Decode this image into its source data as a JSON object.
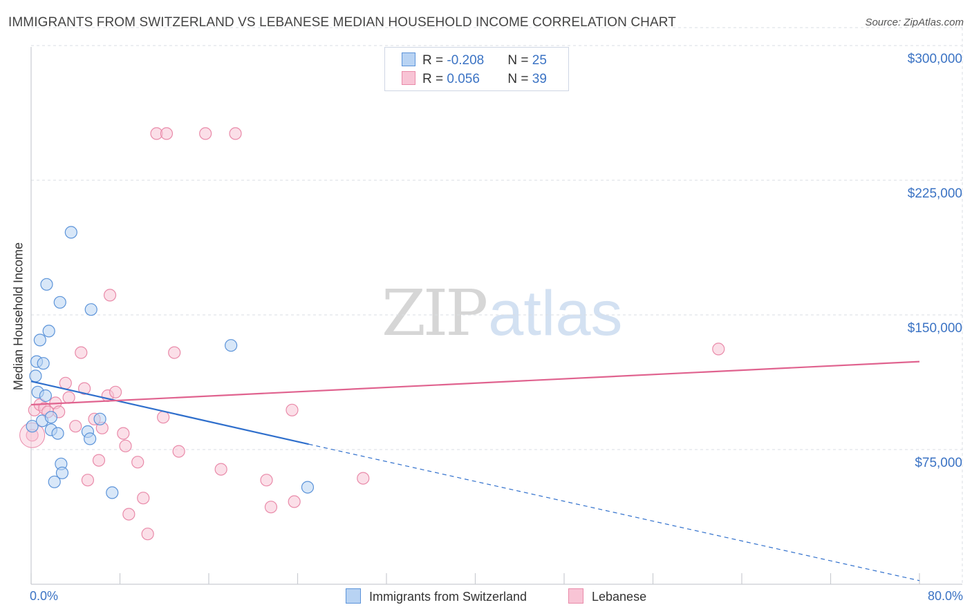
{
  "title": "IMMIGRANTS FROM SWITZERLAND VS LEBANESE MEDIAN HOUSEHOLD INCOME CORRELATION CHART",
  "source": "Source: ZipAtlas.com",
  "watermark": {
    "zip": "ZIP",
    "atlas": "atlas"
  },
  "legend": {
    "rows": [
      {
        "r_label": "R = ",
        "r_value": "-0.208",
        "n_label": "N = ",
        "n_value": "25"
      },
      {
        "r_label": "R = ",
        "r_value": "0.056",
        "n_label": "N = ",
        "n_value": "39"
      }
    ]
  },
  "colors": {
    "series1_fill": "#b8d3f3",
    "series1_stroke": "#5b93d9",
    "series1_line": "#2f6fcc",
    "series2_fill": "#f8c4d5",
    "series2_stroke": "#e98aa9",
    "series2_line": "#e0638f",
    "tick_text": "#3b73c4",
    "grid": "#d9dde3"
  },
  "chart_data": {
    "type": "scatter",
    "title": "IMMIGRANTS FROM SWITZERLAND VS LEBANESE MEDIAN HOUSEHOLD INCOME CORRELATION CHART",
    "xlabel": "",
    "ylabel": "Median Household Income",
    "xlim": [
      0,
      80
    ],
    "ylim": [
      0,
      310000
    ],
    "x_tick_labels": [
      "0.0%",
      "80.0%"
    ],
    "y_ticks": [
      {
        "value": 75000,
        "label": "$75,000"
      },
      {
        "value": 150000,
        "label": "$150,000"
      },
      {
        "value": 225000,
        "label": "$225,000"
      },
      {
        "value": 300000,
        "label": "$300,000"
      }
    ],
    "grid": true,
    "legend_position": "top-center",
    "series": [
      {
        "name": "Immigrants from Switzerland",
        "R": -0.208,
        "N": 25,
        "points": [
          [
            0.1,
            88000
          ],
          [
            0.4,
            116000
          ],
          [
            0.5,
            124000
          ],
          [
            0.6,
            107000
          ],
          [
            0.8,
            136000
          ],
          [
            1.0,
            91000
          ],
          [
            1.1,
            123000
          ],
          [
            1.3,
            105000
          ],
          [
            1.4,
            167000
          ],
          [
            1.6,
            141000
          ],
          [
            1.8,
            93000
          ],
          [
            1.8,
            86000
          ],
          [
            2.1,
            57000
          ],
          [
            2.4,
            84000
          ],
          [
            2.6,
            157000
          ],
          [
            2.7,
            67000
          ],
          [
            2.8,
            62000
          ],
          [
            3.6,
            196000
          ],
          [
            5.1,
            85000
          ],
          [
            5.3,
            81000
          ],
          [
            5.4,
            153000
          ],
          [
            6.2,
            92000
          ],
          [
            7.3,
            51000
          ],
          [
            18.0,
            133000
          ],
          [
            24.9,
            54000
          ]
        ],
        "trend": {
          "x": [
            0,
            25
          ],
          "y": [
            113000,
            78000
          ]
        },
        "trend_dashed": {
          "x": [
            25,
            80
          ],
          "y": [
            78000,
            2000
          ]
        }
      },
      {
        "name": "Lebanese",
        "R": 0.056,
        "N": 39,
        "points": [
          [
            0.1,
            83000
          ],
          [
            0.3,
            97000
          ],
          [
            0.8,
            100000
          ],
          [
            1.2,
            98000
          ],
          [
            1.5,
            96000
          ],
          [
            2.2,
            101000
          ],
          [
            2.5,
            96000
          ],
          [
            3.1,
            112000
          ],
          [
            3.4,
            104000
          ],
          [
            4.0,
            88000
          ],
          [
            4.5,
            129000
          ],
          [
            4.8,
            109000
          ],
          [
            5.1,
            58000
          ],
          [
            5.7,
            92000
          ],
          [
            6.1,
            69000
          ],
          [
            6.4,
            87000
          ],
          [
            6.9,
            105000
          ],
          [
            7.1,
            161000
          ],
          [
            7.6,
            107000
          ],
          [
            8.3,
            84000
          ],
          [
            8.5,
            77000
          ],
          [
            8.8,
            39000
          ],
          [
            9.6,
            68000
          ],
          [
            10.1,
            48000
          ],
          [
            10.5,
            28000
          ],
          [
            11.3,
            251000
          ],
          [
            11.9,
            93000
          ],
          [
            12.2,
            251000
          ],
          [
            12.9,
            129000
          ],
          [
            13.3,
            74000
          ],
          [
            15.7,
            251000
          ],
          [
            17.1,
            64000
          ],
          [
            18.4,
            251000
          ],
          [
            21.2,
            58000
          ],
          [
            21.6,
            43000
          ],
          [
            23.5,
            97000
          ],
          [
            23.7,
            46000
          ],
          [
            29.9,
            59000
          ],
          [
            61.9,
            131000
          ]
        ],
        "trend": {
          "x": [
            0,
            80
          ],
          "y": [
            100000,
            124000
          ]
        }
      }
    ]
  }
}
